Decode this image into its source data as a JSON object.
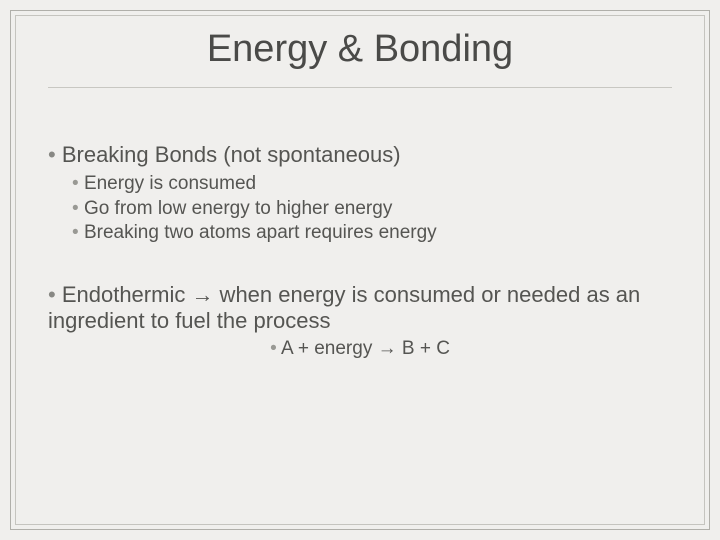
{
  "slide": {
    "title": "Energy & Bonding",
    "colors": {
      "background": "#f0efed",
      "outer_border": "#b0afaa",
      "inner_border": "#c5c4bf",
      "divider": "#c8c7c2",
      "title_text": "#4a4a48",
      "body_text": "#555552",
      "bullet_level1": "#888884",
      "bullet_level2": "#999994"
    },
    "typography": {
      "title_fontsize": 38,
      "level1_fontsize": 22,
      "level2_fontsize": 19,
      "font_family": "Arial"
    },
    "bullets": {
      "item1": {
        "text": "Breaking Bonds (not spontaneous)",
        "sub1": "Energy is consumed",
        "sub2": "Go from low energy to higher energy",
        "sub3": "Breaking two atoms apart requires energy"
      },
      "item2": {
        "text": "Endothermic → when energy is consumed or needed as an ingredient to fuel the process",
        "sub1": "A + energy → B + C"
      }
    }
  }
}
